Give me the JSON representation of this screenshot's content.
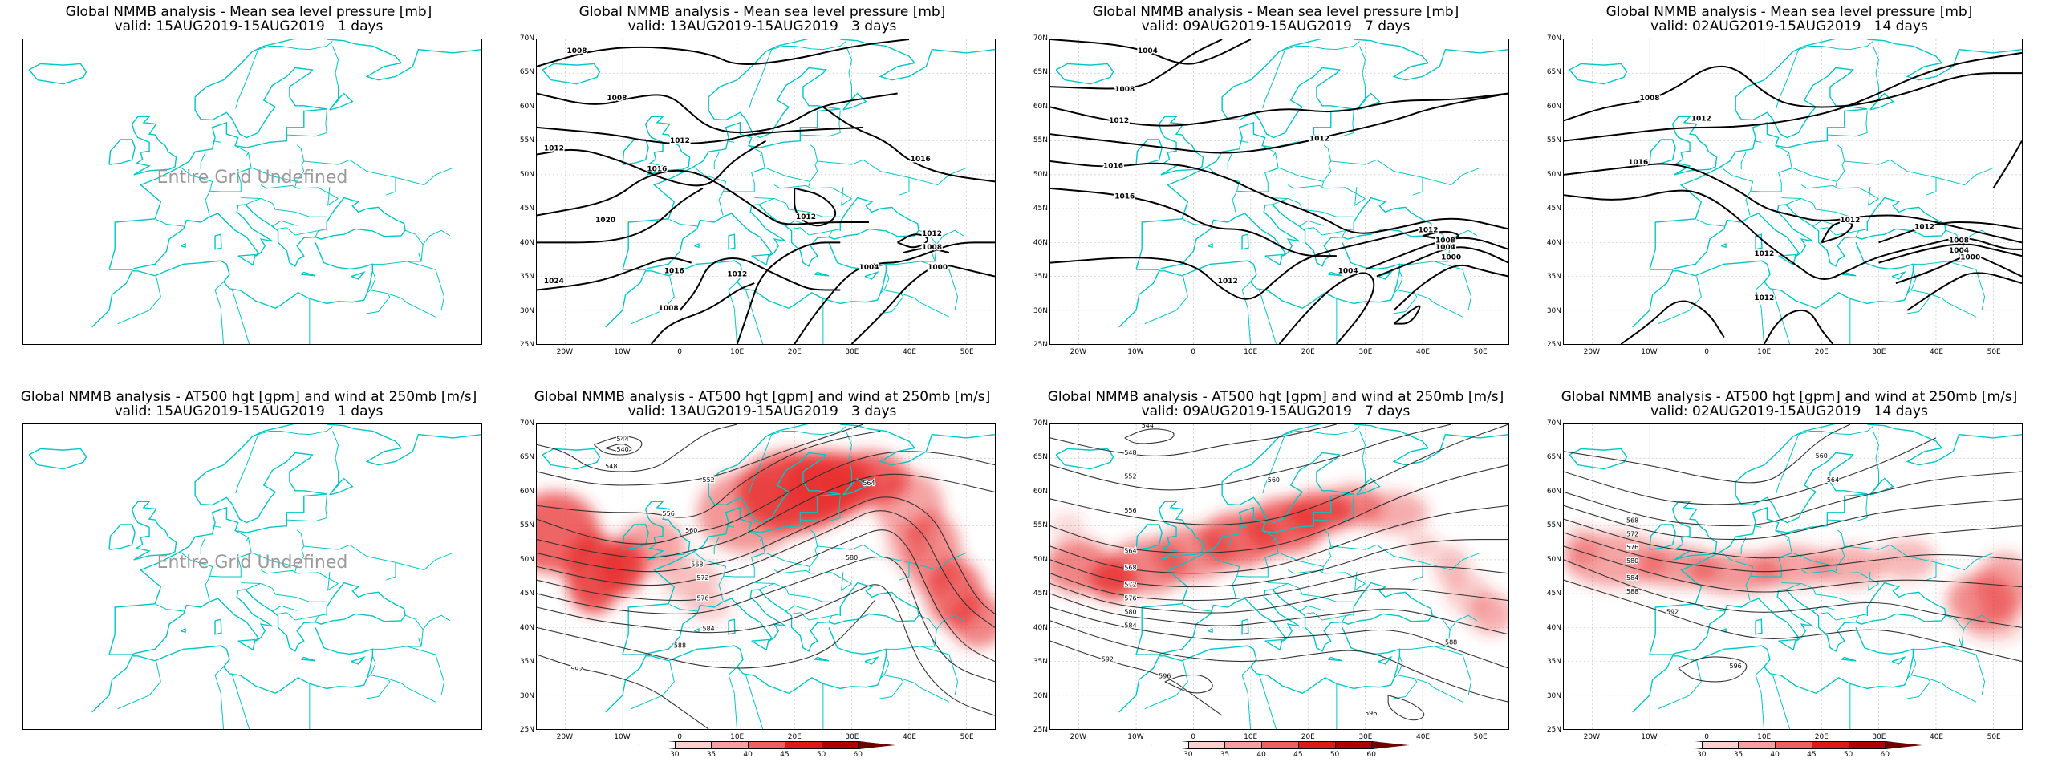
{
  "panels": [
    {
      "title": "Global NMMB analysis - Mean sea level pressure [mb]",
      "valid": "valid: 15AUG2019-15AUG2019   1 days",
      "undefined_text": "Entire Grid Undefined",
      "kind": "mslp-empty"
    },
    {
      "title": "Global NMMB analysis - Mean sea level pressure [mb]",
      "valid": "valid: 13AUG2019-15AUG2019   3 days",
      "kind": "mslp",
      "contour_labels": [
        "1008",
        "1012",
        "1016",
        "1020",
        "1024",
        "1004",
        "1000"
      ]
    },
    {
      "title": "Global NMMB analysis - Mean sea level pressure [mb]",
      "valid": "valid: 09AUG2019-15AUG2019   7 days",
      "kind": "mslp",
      "contour_labels": [
        "1004",
        "1008",
        "1012",
        "1016",
        "1000"
      ]
    },
    {
      "title": "Global NMMB analysis - Mean sea level pressure [mb]",
      "valid": "valid: 02AUG2019-15AUG2019   14 days",
      "kind": "mslp",
      "contour_labels": [
        "1008",
        "1012",
        "1016",
        "1004",
        "1000"
      ]
    },
    {
      "title": "Global NMMB analysis - AT500 hgt [gpm] and wind at 250mb [m/s]",
      "valid": "valid: 15AUG2019-15AUG2019   1 days",
      "undefined_text": "Entire Grid Undefined",
      "kind": "z500-empty"
    },
    {
      "title": "Global NMMB analysis - AT500 hgt [gpm] and wind at 250mb [m/s]",
      "valid": "valid: 13AUG2019-15AUG2019   3 days",
      "kind": "z500",
      "contour_labels": [
        "544",
        "540",
        "548",
        "552",
        "556",
        "560",
        "564",
        "568",
        "572",
        "576",
        "580",
        "584",
        "588",
        "592"
      ]
    },
    {
      "title": "Global NMMB analysis - AT500 hgt [gpm] and wind at 250mb [m/s]",
      "valid": "valid: 09AUG2019-15AUG2019   7 days",
      "kind": "z500",
      "contour_labels": [
        "544",
        "548",
        "552",
        "556",
        "560",
        "564",
        "568",
        "572",
        "576",
        "580",
        "584",
        "588",
        "592",
        "596"
      ]
    },
    {
      "title": "Global NMMB analysis - AT500 hgt [gpm] and wind at 250mb [m/s]",
      "valid": "valid: 02AUG2019-15AUG2019   14 days",
      "kind": "z500",
      "contour_labels": [
        "560",
        "564",
        "568",
        "572",
        "576",
        "580",
        "584",
        "588",
        "592",
        "596"
      ]
    }
  ],
  "lat_labels": [
    "70N",
    "65N",
    "60N",
    "55N",
    "50N",
    "45N",
    "40N",
    "35N",
    "30N",
    "25N"
  ],
  "lon_labels": [
    "20W",
    "10W",
    "0",
    "10E",
    "20E",
    "30E",
    "40E",
    "50E"
  ],
  "colorbar": {
    "labels": [
      "30",
      "35",
      "40",
      "45",
      "50",
      "60"
    ],
    "colors": [
      "#ffffff",
      "#fcd0d0",
      "#f8a0a0",
      "#f06060",
      "#e01818",
      "#b00000",
      "#700000"
    ]
  },
  "colors": {
    "coast": "#00c8c8",
    "contour": "#000000",
    "wind_shade": "#e83030",
    "undefined_text": "#9a9a9a"
  }
}
